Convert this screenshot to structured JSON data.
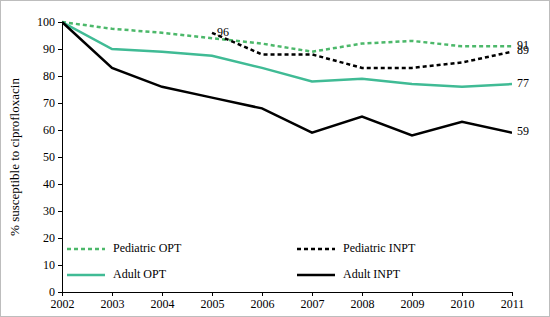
{
  "chart_data": {
    "type": "line",
    "y_label": "% susceptible to ciprofloxacin",
    "x": [
      2002,
      2003,
      2004,
      2005,
      2006,
      2007,
      2008,
      2009,
      2010,
      2011
    ],
    "xlim": [
      2002,
      2011
    ],
    "xticks": [
      2002,
      2003,
      2004,
      2005,
      2006,
      2007,
      2008,
      2009,
      2010,
      2011
    ],
    "ylim": [
      0,
      100
    ],
    "yticks": [
      0,
      10,
      20,
      30,
      40,
      50,
      60,
      70,
      80,
      90,
      100
    ],
    "grid": false,
    "legend": "lower center",
    "series": [
      {
        "name": "Pediatric OPT",
        "color": "#4cb86a",
        "line_style": "dotted",
        "values": [
          100,
          97.5,
          96,
          94,
          92,
          89,
          92,
          93,
          91,
          91
        ]
      },
      {
        "name": "Pediatric INPT",
        "color": "#000000",
        "line_style": "dotted",
        "values": [
          null,
          null,
          null,
          96,
          88,
          88,
          83,
          83,
          85,
          89
        ]
      },
      {
        "name": "Adult OPT",
        "color": "#40bb95",
        "line_style": "solid",
        "values": [
          100,
          90,
          89,
          87.5,
          83,
          78,
          79,
          77,
          76,
          77
        ]
      },
      {
        "name": "Adult INPT",
        "color": "#000000",
        "line_style": "solid",
        "values": [
          100,
          83,
          76,
          72,
          68,
          59,
          65,
          58,
          63,
          59
        ]
      }
    ],
    "annotations": [
      {
        "label": "96",
        "x": 2005,
        "y": 96
      },
      {
        "label": "91",
        "x": 2011,
        "y": 91
      },
      {
        "label": "89",
        "x": 2011,
        "y": 89
      },
      {
        "label": "77",
        "x": 2011,
        "y": 77
      },
      {
        "label": "59",
        "x": 2011,
        "y": 59
      }
    ]
  }
}
